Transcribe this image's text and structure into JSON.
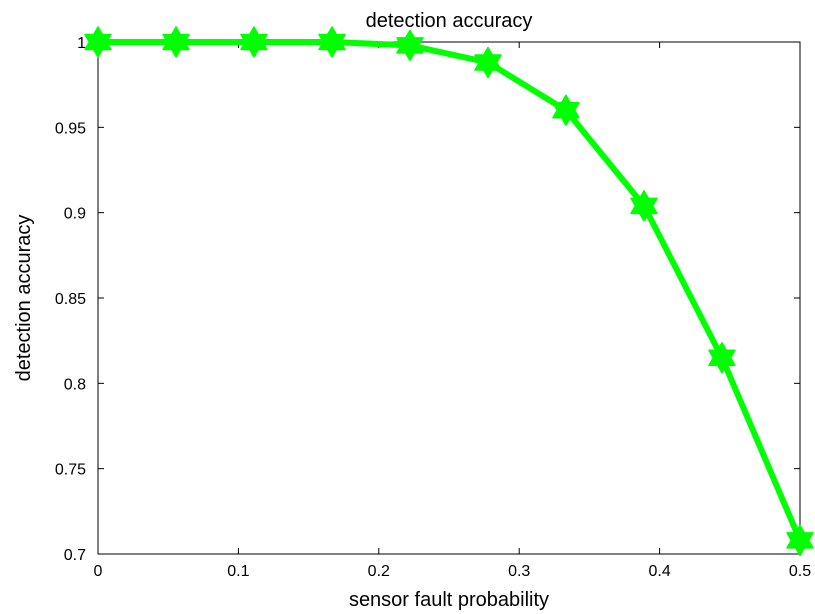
{
  "chart_data": {
    "type": "line",
    "title": "detection accuracy",
    "xlabel": "sensor fault probability",
    "ylabel": "detection accuracy",
    "xlim": [
      0,
      0.5
    ],
    "ylim": [
      0.7,
      1
    ],
    "xticks": [
      0,
      0.1,
      0.2,
      0.3,
      0.4,
      0.5
    ],
    "xtick_labels": [
      "0",
      "0.1",
      "0.2",
      "0.3",
      "0.4",
      "0.5"
    ],
    "yticks": [
      0.7,
      0.75,
      0.8,
      0.85,
      0.9,
      0.95,
      1
    ],
    "ytick_labels": [
      "0.7",
      "0.75",
      "0.8",
      "0.85",
      "0.9",
      "0.95",
      "1"
    ],
    "grid": false,
    "legend": null,
    "series": [
      {
        "color": "#00ff00",
        "marker": "hexagram",
        "x": [
          0,
          0.0556,
          0.1111,
          0.1667,
          0.2222,
          0.2778,
          0.3333,
          0.3889,
          0.4444,
          0.5
        ],
        "y": [
          1.0,
          1.0,
          1.0,
          1.0,
          0.998,
          0.988,
          0.96,
          0.904,
          0.815,
          0.708
        ]
      }
    ]
  }
}
